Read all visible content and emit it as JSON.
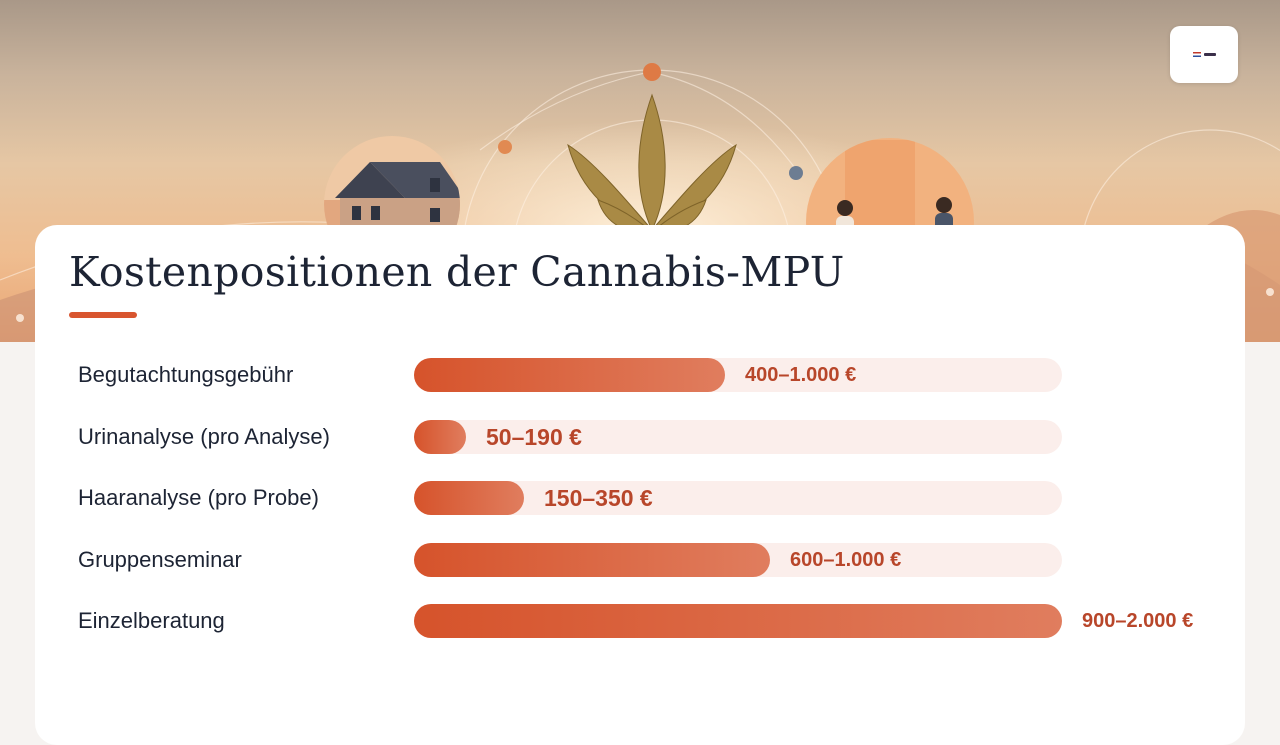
{
  "brand": {
    "logo_icon": "brand-logo-icon"
  },
  "chart_data": {
    "type": "bar",
    "orientation": "horizontal",
    "title": "Kostenpositionen der Cannabis-MPU",
    "unit": "€",
    "xlim": [
      0,
      2000
    ],
    "categories": [
      "Begutachtungsgebühr",
      "Urinanalyse (pro Analyse)",
      "Haaranalyse (pro Probe)",
      "Gruppenseminar",
      "Einzelberatung"
    ],
    "ranges": [
      [
        400,
        1000
      ],
      [
        50,
        190
      ],
      [
        150,
        350
      ],
      [
        600,
        1000
      ],
      [
        900,
        2000
      ]
    ],
    "value_labels": [
      "400–1.000 €",
      "50–190 €",
      "150–350 €",
      "600–1.000 €",
      "900–2.000 €"
    ],
    "bar_fraction": [
      0.48,
      0.08,
      0.17,
      0.55,
      1.0
    ],
    "colors": {
      "bar_start": "#d6532b",
      "bar_end": "#e07d5e",
      "track": "#fbeeeb",
      "value_text": "#b8462a",
      "accent": "#d8552f"
    }
  }
}
